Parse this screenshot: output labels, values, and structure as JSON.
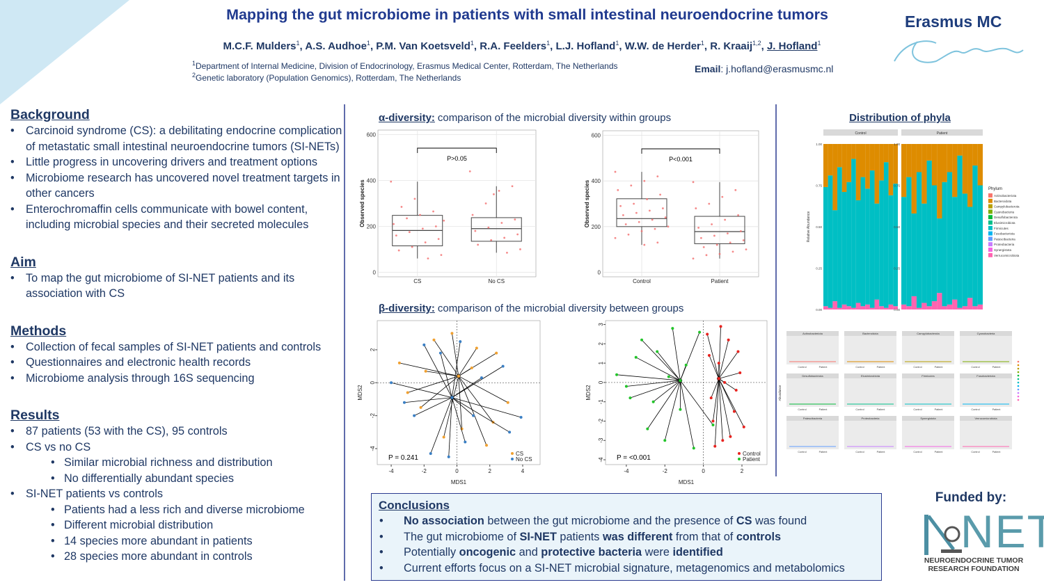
{
  "header": {
    "title": "Mapping the gut microbiome in patients with small intestinal neuroendocrine tumors",
    "authors": [
      {
        "name": "M.C.F. Mulders",
        "sup": "1"
      },
      {
        "name": "A.S. Audhoe",
        "sup": "1"
      },
      {
        "name": "P.M. Van Koetsveld",
        "sup": "1"
      },
      {
        "name": "R.A. Feelders",
        "sup": "1"
      },
      {
        "name": "L.J. Hofland",
        "sup": "1"
      },
      {
        "name": "W.W. de Herder",
        "sup": "1"
      },
      {
        "name": "R. Kraaij",
        "sup": "1,2"
      },
      {
        "name": "J. Hofland",
        "sup": "1",
        "underline": true
      }
    ],
    "affiliations": [
      {
        "sup": "1",
        "text": "Department of Internal Medicine, Division of Endocrinology, Erasmus Medical Center, Rotterdam, The Netherlands"
      },
      {
        "sup": "2",
        "text": "Genetic laboratory (Population Genomics), Rotterdam, The Netherlands"
      }
    ],
    "email_label": "Email",
    "email": ": j.hofland@erasmusmc.nl",
    "logo": "Erasmus MC"
  },
  "sections": [
    {
      "heading": "Background",
      "items": [
        {
          "text": "Carcinoid syndrome (CS): a debilitating endocrine complication of metastatic small intestinal neuroendocrine tumors (SI-NETs)",
          "level": 1
        },
        {
          "text": "Little progress in uncovering drivers and treatment options",
          "level": 1
        },
        {
          "text": "Microbiome research has uncovered novel treatment targets in other cancers",
          "level": 1
        },
        {
          "text": "Enterochromaffin cells communicate with bowel content, including microbial species and their secreted molecules",
          "level": 1
        }
      ]
    },
    {
      "heading": "Aim",
      "items": [
        {
          "text": "To map the gut microbiome of SI-NET patients and its association with CS",
          "level": 1
        }
      ]
    },
    {
      "heading": "Methods",
      "items": [
        {
          "text": "Collection of fecal samples of SI-NET patients and controls",
          "level": 1
        },
        {
          "text": "Questionnaires and electronic health records",
          "level": 1
        },
        {
          "text": "Microbiome analysis through 16S sequencing",
          "level": 1
        }
      ]
    },
    {
      "heading": "Results",
      "items": [
        {
          "text": "87 patients (53 with the CS), 95 controls",
          "level": 1
        },
        {
          "text": "CS vs no CS",
          "level": 1
        },
        {
          "text": "Similar microbial richness and distribution",
          "level": 2
        },
        {
          "text": "No differentially abundant species",
          "level": 2
        },
        {
          "text": "SI-NET patients vs controls",
          "level": 1
        },
        {
          "text": "Patients had a less rich and diverse microbiome",
          "level": 2
        },
        {
          "text": "Different microbial distribution",
          "level": 2
        },
        {
          "text": "14 species more abundant in patients",
          "level": 2
        },
        {
          "text": "28 species more abundant in controls",
          "level": 2
        }
      ]
    }
  ],
  "alpha": {
    "label": "α-diversity:",
    "text": "comparison of the microbial diversity within groups",
    "plots": [
      {
        "type": "box",
        "ylabel": "Observed species",
        "ylim": [
          -20,
          620
        ],
        "yticks": [
          0,
          200,
          400,
          600
        ],
        "categories": [
          "CS",
          "No CS"
        ],
        "annotation": "P>0.05",
        "boxes": [
          {
            "min": 60,
            "q1": 115,
            "median": 182,
            "q3": 248,
            "max": 395
          },
          {
            "min": 85,
            "q1": 135,
            "median": 190,
            "q3": 238,
            "max": 375
          }
        ],
        "points": [
          [
            395,
            265,
            250,
            235,
            210,
            200,
            190,
            175,
            160,
            145,
            130,
            110,
            95,
            75,
            60,
            320,
            285,
            225
          ],
          [
            440,
            375,
            355,
            300,
            250,
            230,
            215,
            195,
            180,
            165,
            150,
            140,
            120,
            100,
            85,
            340
          ]
        ]
      },
      {
        "type": "box",
        "ylabel": "Observed species",
        "ylim": [
          -20,
          620
        ],
        "yticks": [
          0,
          200,
          400,
          600
        ],
        "categories": [
          "Control",
          "Patient"
        ],
        "annotation": "P<0.001",
        "boxes": [
          {
            "min": 120,
            "q1": 200,
            "median": 235,
            "q3": 322,
            "max": 440
          },
          {
            "min": 60,
            "q1": 125,
            "median": 178,
            "q3": 245,
            "max": 395
          }
        ],
        "points": [
          [
            440,
            420,
            400,
            380,
            360,
            340,
            320,
            300,
            290,
            280,
            270,
            260,
            250,
            240,
            230,
            220,
            210,
            200,
            190,
            180,
            165,
            150,
            130,
            120
          ],
          [
            395,
            360,
            330,
            300,
            280,
            250,
            230,
            210,
            195,
            180,
            170,
            160,
            150,
            140,
            130,
            120,
            110,
            100,
            90,
            80,
            75,
            60
          ]
        ]
      }
    ]
  },
  "beta": {
    "label": "β-diversity:",
    "text": "comparison of the microbial diversity between groups",
    "plots": [
      {
        "type": "scatter",
        "xlabel": "MDS1",
        "ylabel": "MDS2",
        "xlim": [
          -4.85,
          5.06
        ],
        "ylim": [
          -4.97,
          3.77
        ],
        "xticks": [
          -4,
          -2,
          0,
          2,
          4
        ],
        "yticks": [
          -4,
          -2,
          0,
          2
        ],
        "annotation": "P = 0.241",
        "series": [
          {
            "name": "CS",
            "color": "#f0a030",
            "centroid": [
              0.1,
              0.4
            ],
            "x": [
              -3.5,
              -2.2,
              -1.4,
              -0.8,
              0.3,
              1.2,
              2.4,
              3.1,
              -3.0,
              1.8,
              -1.9,
              0.9,
              2.2,
              -0.3
            ],
            "y": [
              1.2,
              -1.5,
              2.6,
              -3.3,
              -2.8,
              2.1,
              1.8,
              -1.2,
              -0.6,
              -3.8,
              0.7,
              0.9,
              -2.4,
              3.0
            ]
          },
          {
            "name": "No CS",
            "color": "#3a7fc4",
            "centroid": [
              -0.3,
              -0.9
            ],
            "x": [
              -4.0,
              -2.6,
              -1.0,
              -1.6,
              0.5,
              1.5,
              3.9,
              2.8,
              -3.2,
              0.2,
              -0.5,
              1.0,
              3.2,
              -2.0
            ],
            "y": [
              0.0,
              -2.0,
              1.8,
              -4.3,
              -3.6,
              0.3,
              -2.1,
              1.0,
              -1.2,
              2.5,
              -4.5,
              -2.0,
              -3.0,
              2.3
            ]
          }
        ]
      },
      {
        "type": "scatter",
        "xlabel": "MDS1",
        "ylabel": "MDS2",
        "xlim": [
          -5.08,
          3.3
        ],
        "ylim": [
          -4.25,
          3.2
        ],
        "xticks": [
          -4,
          -2,
          0,
          2
        ],
        "yticks": [
          -4,
          -3,
          -2,
          -1,
          0,
          1,
          2,
          3
        ],
        "annotation": "P  = <0.001",
        "series": [
          {
            "name": "Control",
            "color": "#e8231f",
            "centroid": [
              0.8,
              0.2
            ],
            "x": [
              0.2,
              0.5,
              0.8,
              1.0,
              1.3,
              1.6,
              1.9,
              2.1,
              0.4,
              0.9,
              1.4,
              1.8,
              0.6,
              1.1,
              1.7,
              0.3
            ],
            "y": [
              2.5,
              -2.0,
              1.0,
              -3.0,
              2.2,
              -1.5,
              0.5,
              -2.3,
              -0.8,
              2.9,
              -2.8,
              1.6,
              -3.3,
              0.0,
              -0.4,
              1.4
            ]
          },
          {
            "name": "Patient",
            "color": "#22c42a",
            "centroid": [
              -1.2,
              0.1
            ],
            "x": [
              -4.5,
              -3.8,
              -3.2,
              -2.9,
              -2.4,
              -2.0,
              -1.6,
              -1.2,
              -0.9,
              -0.5,
              -3.5,
              -2.6,
              -1.8,
              -0.2,
              0.5,
              -4.0
            ],
            "y": [
              0.4,
              -0.8,
              2.2,
              -2.4,
              1.6,
              -3.0,
              2.8,
              -1.4,
              0.9,
              -3.4,
              1.3,
              -1.0,
              0.3,
              2.6,
              -2.2,
              -0.2
            ]
          }
        ]
      }
    ]
  },
  "phyla": {
    "type": "stacked_bar",
    "title": "Distribution of phyla",
    "ylabel": "Relative Abundance",
    "ylim": [
      0,
      1
    ],
    "yticks": [
      {
        "value": 0,
        "label": "0.00"
      },
      {
        "value": 0.25,
        "label": "0.25"
      },
      {
        "value": 0.5,
        "label": "0.50"
      },
      {
        "value": 0.75,
        "label": "0.75"
      },
      {
        "value": 1,
        "label": "1.00"
      }
    ],
    "legend_title": "Phylum",
    "phyla": [
      {
        "name": "Actinobacteriota",
        "color": "#f8766d"
      },
      {
        "name": "Bacteroidota",
        "color": "#de8c00"
      },
      {
        "name": "Campylobacterota",
        "color": "#b79f00"
      },
      {
        "name": "Cyanobacteria",
        "color": "#7cae00"
      },
      {
        "name": "Desulfobacterota",
        "color": "#00ba38"
      },
      {
        "name": "Elusimicrobiota",
        "color": "#00c08b"
      },
      {
        "name": "Firmicutes",
        "color": "#00bfc4"
      },
      {
        "name": "Fusobacteriota",
        "color": "#00b4f0"
      },
      {
        "name": "Patescibacteria",
        "color": "#619cff"
      },
      {
        "name": "Proteobacteria",
        "color": "#c77cff"
      },
      {
        "name": "Synergistota",
        "color": "#f564e3"
      },
      {
        "name": "Verrucomicrobiota",
        "color": "#ff64b0"
      }
    ],
    "panels": [
      {
        "name": "Control",
        "series": [
          {
            "name": "Verrucomicrobiota",
            "values": [
              0.02,
              0.01,
              0.05,
              0.01,
              0.03,
              0.02,
              0.01,
              0.04,
              0.02,
              0.03,
              0.01,
              0.06,
              0.02,
              0.01,
              0.03,
              0.02
            ]
          },
          {
            "name": "Firmicutes",
            "values": [
              0.72,
              0.8,
              0.55,
              0.85,
              0.68,
              0.75,
              0.9,
              0.62,
              0.78,
              0.7,
              0.83,
              0.58,
              0.76,
              0.88,
              0.66,
              0.74
            ]
          },
          {
            "name": "Bacteroidota",
            "values": [
              0.26,
              0.19,
              0.4,
              0.14,
              0.29,
              0.23,
              0.09,
              0.34,
              0.2,
              0.27,
              0.16,
              0.36,
              0.22,
              0.11,
              0.31,
              0.24
            ]
          }
        ]
      },
      {
        "name": "Patient",
        "series": [
          {
            "name": "Verrucomicrobiota",
            "values": [
              0.03,
              0.02,
              0.08,
              0.01,
              0.04,
              0.02,
              0.05,
              0.1,
              0.02,
              0.03,
              0.06,
              0.01,
              0.02,
              0.07,
              0.02,
              0.03
            ]
          },
          {
            "name": "Firmicutes",
            "values": [
              0.65,
              0.78,
              0.5,
              0.82,
              0.6,
              0.88,
              0.7,
              0.45,
              0.75,
              0.8,
              0.62,
              0.92,
              0.68,
              0.55,
              0.85,
              0.72
            ]
          },
          {
            "name": "Bacteroidota",
            "values": [
              0.32,
              0.2,
              0.42,
              0.17,
              0.36,
              0.1,
              0.25,
              0.45,
              0.23,
              0.17,
              0.32,
              0.07,
              0.3,
              0.38,
              0.13,
              0.25
            ]
          }
        ]
      }
    ]
  },
  "small_multiples": {
    "ylabel": "Abundance",
    "categories": [
      "Control",
      "Patient"
    ]
  },
  "conclusions": {
    "heading": "Conclusions",
    "items": [
      [
        {
          "text": "No association",
          "bold": true
        },
        {
          "text": " between the gut microbiome and the presence of ",
          "bold": false
        },
        {
          "text": "CS",
          "bold": true
        },
        {
          "text": " was found",
          "bold": false
        }
      ],
      [
        {
          "text": "The gut microbiome of ",
          "bold": false
        },
        {
          "text": "SI-NET",
          "bold": true
        },
        {
          "text": " patients ",
          "bold": false
        },
        {
          "text": "was different",
          "bold": true
        },
        {
          "text": " from that of ",
          "bold": false
        },
        {
          "text": "controls",
          "bold": true
        }
      ],
      [
        {
          "text": "Potentially ",
          "bold": false
        },
        {
          "text": "oncogenic",
          "bold": true
        },
        {
          "text": " and ",
          "bold": false
        },
        {
          "text": "protective bacteria",
          "bold": true
        },
        {
          "text": " were ",
          "bold": false
        },
        {
          "text": "identified",
          "bold": true
        }
      ],
      [
        {
          "text": "Current efforts focus on a SI-NET microbial signature, metagenomics and metabolomics",
          "bold": false
        }
      ]
    ]
  },
  "funding": {
    "label": "Funded by:",
    "logo_letters": "NET",
    "logo_line1": "NEUROENDOCRINE TUMOR",
    "logo_line2": "RESEARCH FOUNDATION"
  }
}
